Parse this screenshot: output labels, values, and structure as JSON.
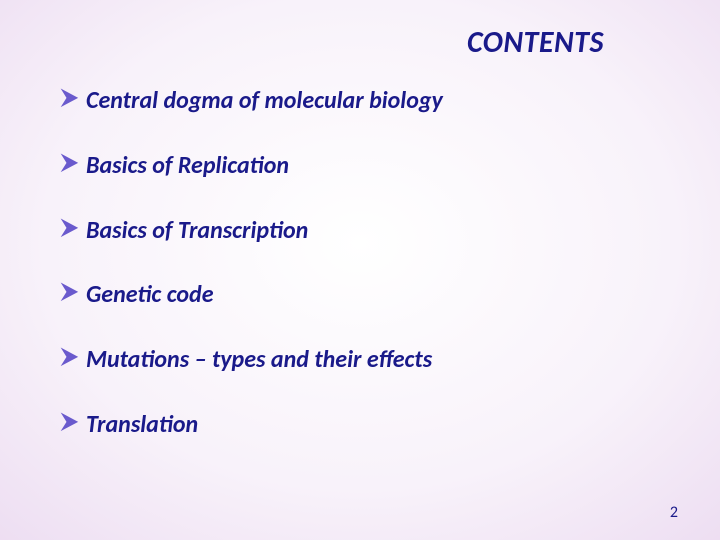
{
  "title": {
    "text": "CONTENTS",
    "color": "#1a1a8a",
    "fontsize": 30
  },
  "bullets": {
    "marker_color": "#6a5acd",
    "text_color": "#1a1a8a",
    "fontsize": 24,
    "items": [
      "Central dogma of molecular biology",
      "Basics of Replication",
      "Basics of Transcription",
      "Genetic code",
      "Mutations – types and their effects",
      "Translation"
    ]
  },
  "page_number": {
    "value": "2",
    "color": "#1a1a8a"
  },
  "background": {
    "gradient_center": "#ffffff",
    "gradient_mid": "#e8d4ee",
    "gradient_edge": "#d4b8df"
  }
}
